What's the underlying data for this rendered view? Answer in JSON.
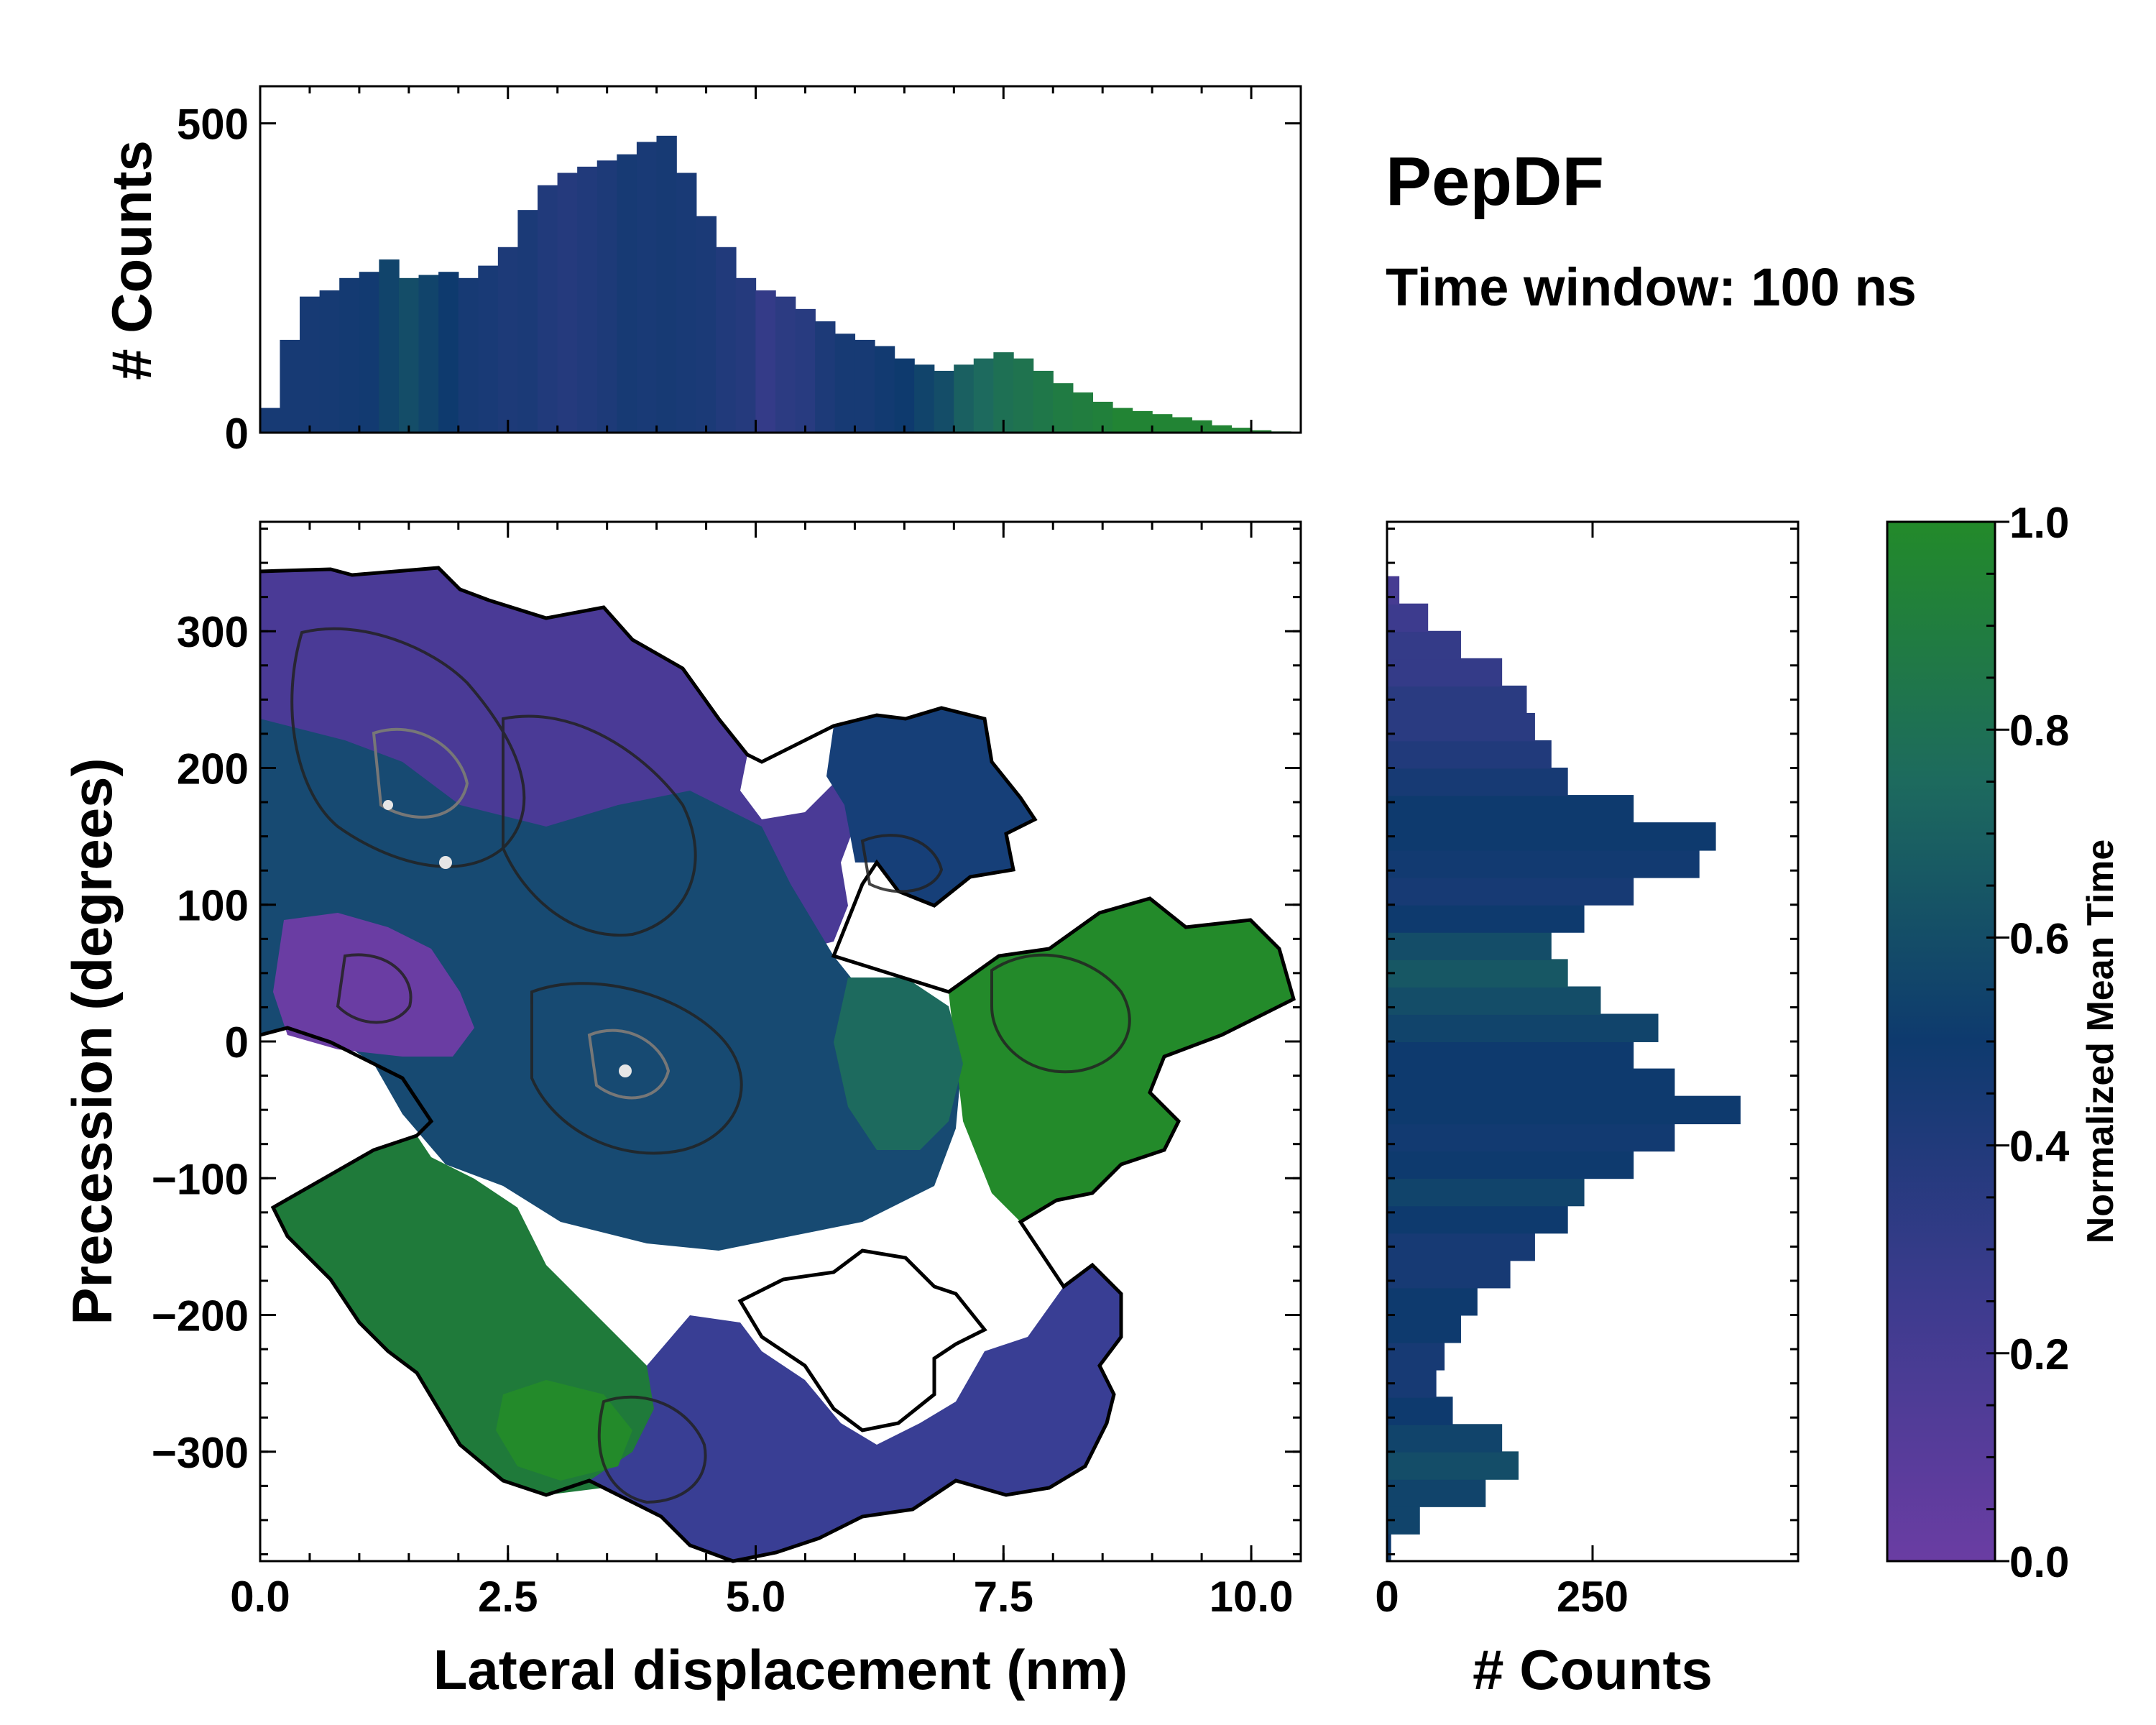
{
  "figure": {
    "title": "PepDF",
    "subtitle": "Time window: 100 ns"
  },
  "colors": {
    "purple": "#6a3da3",
    "indigo": "#3d3b8e",
    "navy": "#0e3a6e",
    "teal": "#1d6a5e",
    "green": "#238a2a"
  },
  "chart_data": [
    {
      "id": "top-histogram",
      "type": "bar",
      "title": "",
      "xlabel": "",
      "ylabel": "# Counts",
      "xlim": [
        0,
        10.5
      ],
      "ylim": [
        0,
        560
      ],
      "yticks": [
        0,
        500
      ],
      "ytick_labels": [
        "0",
        "500"
      ],
      "x": [
        0.1,
        0.3,
        0.5,
        0.7,
        0.9,
        1.1,
        1.3,
        1.5,
        1.7,
        1.9,
        2.1,
        2.3,
        2.5,
        2.7,
        2.9,
        3.1,
        3.3,
        3.5,
        3.7,
        3.9,
        4.1,
        4.3,
        4.5,
        4.7,
        4.9,
        5.1,
        5.3,
        5.5,
        5.7,
        5.9,
        6.1,
        6.3,
        6.5,
        6.7,
        6.9,
        7.1,
        7.3,
        7.5,
        7.7,
        7.9,
        8.1,
        8.3,
        8.5,
        8.7,
        8.9,
        9.1,
        9.3,
        9.5,
        9.7,
        9.9,
        10.1,
        10.3
      ],
      "values": [
        40,
        150,
        220,
        230,
        250,
        260,
        280,
        250,
        255,
        260,
        250,
        270,
        300,
        360,
        400,
        420,
        430,
        440,
        450,
        470,
        480,
        420,
        350,
        300,
        250,
        230,
        220,
        200,
        180,
        160,
        150,
        140,
        120,
        110,
        100,
        110,
        120,
        130,
        120,
        100,
        80,
        65,
        50,
        40,
        35,
        30,
        25,
        20,
        12,
        8,
        4,
        2
      ],
      "color_values": [
        0.45,
        0.45,
        0.45,
        0.46,
        0.47,
        0.48,
        0.55,
        0.6,
        0.55,
        0.5,
        0.45,
        0.44,
        0.42,
        0.43,
        0.4,
        0.38,
        0.4,
        0.42,
        0.45,
        0.44,
        0.45,
        0.44,
        0.43,
        0.4,
        0.38,
        0.3,
        0.34,
        0.36,
        0.42,
        0.45,
        0.45,
        0.48,
        0.5,
        0.55,
        0.6,
        0.7,
        0.75,
        0.8,
        0.82,
        0.85,
        0.88,
        0.9,
        0.92,
        0.95,
        0.95,
        0.95,
        0.95,
        0.95,
        0.95,
        0.95,
        0.95,
        0.95
      ]
    },
    {
      "id": "main-2d-histogram",
      "type": "heatmap",
      "title": "",
      "xlabel": "Lateral displacement (nm)",
      "ylabel": "Precession (degrees)",
      "xlim": [
        0,
        10.5
      ],
      "ylim": [
        -380,
        380
      ],
      "xticks": [
        0.0,
        2.5,
        5.0,
        7.5,
        10.0
      ],
      "xtick_labels": [
        "0.0",
        "2.5",
        "5.0",
        "7.5",
        "10.0"
      ],
      "yticks": [
        -300,
        -200,
        -100,
        0,
        100,
        200,
        300
      ],
      "ytick_labels": [
        "−300",
        "−200",
        "−100",
        "0",
        "100",
        "200",
        "300"
      ],
      "color_meaning": "Normalized Mean Time",
      "regions": [
        {
          "name": "upper-left lobe",
          "x": [
            0.0,
            6.5
          ],
          "y": [
            100,
            340
          ],
          "mean_time": 0.35
        },
        {
          "name": "upper-right island",
          "x": [
            5.8,
            7.8
          ],
          "y": [
            100,
            240
          ],
          "mean_time": 0.45
        },
        {
          "name": "central band",
          "x": [
            0.0,
            6.5
          ],
          "y": [
            -150,
            100
          ],
          "mean_time": 0.45
        },
        {
          "name": "right green lobe",
          "x": [
            6.7,
            10.5
          ],
          "y": [
            -130,
            100
          ],
          "mean_time": 0.95
        },
        {
          "name": "lower-left green lobe",
          "x": [
            0.0,
            4.0
          ],
          "y": [
            -330,
            -80
          ],
          "mean_time": 0.8
        },
        {
          "name": "lower purple lobe",
          "x": [
            3.0,
            8.8
          ],
          "y": [
            -380,
            -150
          ],
          "mean_time": 0.25
        }
      ]
    },
    {
      "id": "right-histogram",
      "type": "bar",
      "orientation": "horizontal",
      "title": "",
      "xlabel": "# Counts",
      "ylabel": "",
      "xlim": [
        0,
        500
      ],
      "ylim": [
        -380,
        380
      ],
      "xticks": [
        0,
        250
      ],
      "xtick_labels": [
        "0",
        "250"
      ],
      "y": [
        -370,
        -350,
        -330,
        -310,
        -290,
        -270,
        -250,
        -230,
        -210,
        -190,
        -170,
        -150,
        -130,
        -110,
        -90,
        -70,
        -50,
        -30,
        -10,
        10,
        30,
        50,
        70,
        90,
        110,
        130,
        150,
        170,
        190,
        210,
        230,
        250,
        270,
        290,
        310,
        330
      ],
      "values": [
        5,
        40,
        120,
        160,
        140,
        80,
        60,
        70,
        90,
        110,
        150,
        180,
        220,
        240,
        300,
        350,
        430,
        350,
        300,
        330,
        260,
        220,
        200,
        240,
        300,
        380,
        400,
        300,
        220,
        200,
        180,
        170,
        140,
        90,
        50,
        15
      ],
      "color_values": [
        0.5,
        0.55,
        0.55,
        0.6,
        0.55,
        0.5,
        0.45,
        0.45,
        0.5,
        0.5,
        0.45,
        0.45,
        0.5,
        0.55,
        0.5,
        0.48,
        0.5,
        0.5,
        0.5,
        0.55,
        0.6,
        0.65,
        0.6,
        0.5,
        0.45,
        0.48,
        0.5,
        0.5,
        0.45,
        0.4,
        0.35,
        0.35,
        0.3,
        0.3,
        0.25,
        0.2
      ]
    }
  ],
  "colorbar": {
    "label": "Normalized Mean Time",
    "min": 0.0,
    "max": 1.0,
    "ticks": [
      0.0,
      0.2,
      0.4,
      0.6,
      0.8,
      1.0
    ],
    "tick_labels": [
      "0.0",
      "0.2",
      "0.4",
      "0.6",
      "0.8",
      "1.0"
    ]
  }
}
